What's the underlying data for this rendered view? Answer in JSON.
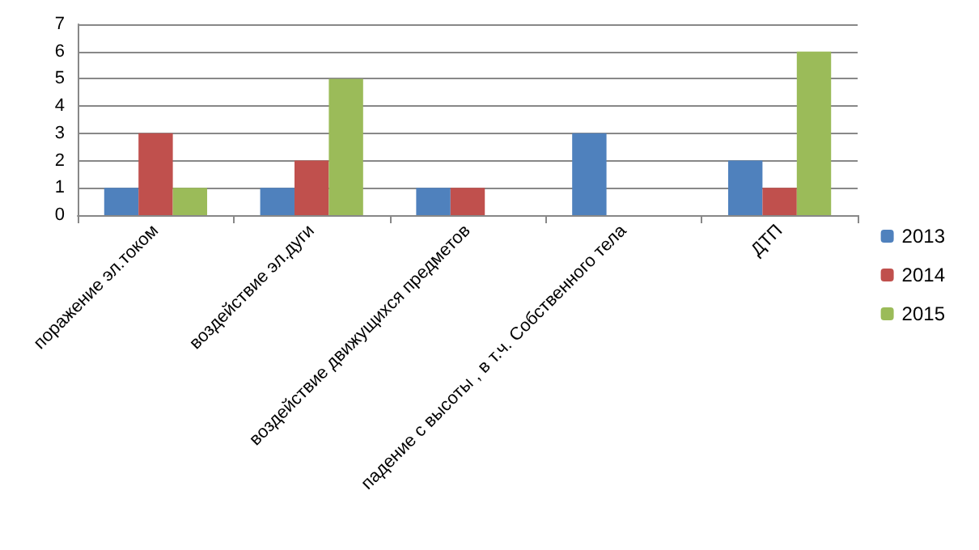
{
  "chart_data": {
    "type": "bar",
    "categories": [
      "поражение эл.током",
      "воздействие эл.дуги",
      "воздействие движущихся предметов",
      "падение с высоты , в т.ч. Собственного тела",
      "ДТП"
    ],
    "series": [
      {
        "name": "2013",
        "color": "#4f81bd",
        "values": [
          1,
          1,
          1,
          3,
          2
        ]
      },
      {
        "name": "2014",
        "color": "#c0504d",
        "values": [
          3,
          2,
          1,
          null,
          1
        ]
      },
      {
        "name": "2015",
        "color": "#9bbb59",
        "values": [
          1,
          5,
          null,
          null,
          6
        ]
      }
    ],
    "ylim": [
      0,
      7
    ],
    "yticks": [
      0,
      1,
      2,
      3,
      4,
      5,
      6,
      7
    ],
    "grid": "y",
    "legend": "right"
  }
}
